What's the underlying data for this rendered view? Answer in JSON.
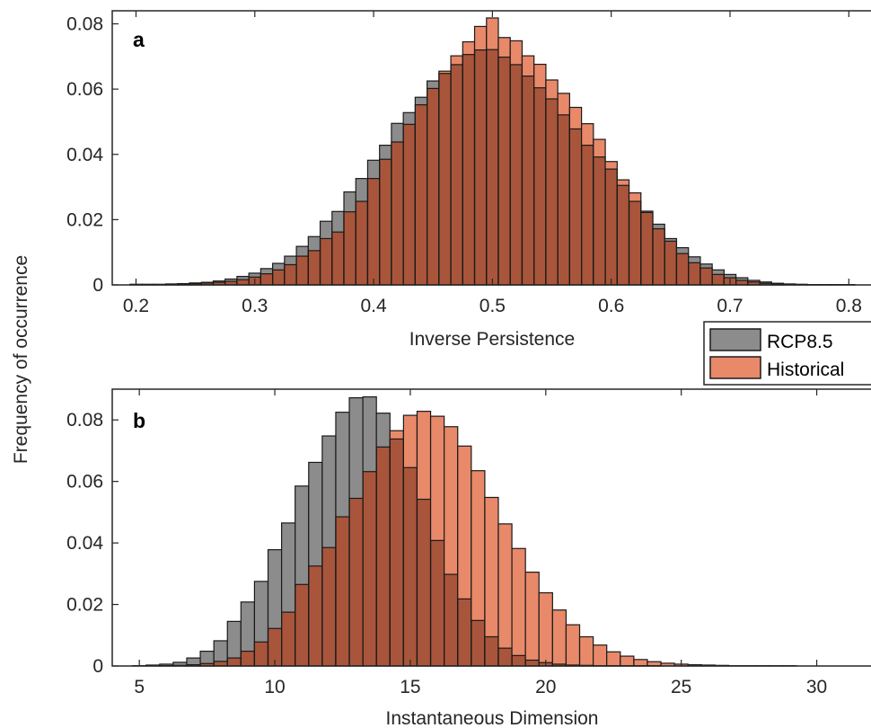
{
  "figure": {
    "ylabel": "Frequency of occurrence",
    "legend": {
      "placement": "right, between panels",
      "entries": [
        {
          "label": "RCP8.5",
          "color": "#8c8c8c"
        },
        {
          "label": "Historical",
          "color": "#e8896a"
        }
      ]
    },
    "colors": {
      "rcp_fill": "#8c8c8c",
      "hist_fill": "#e8896a",
      "overlap_fill": "#a9553b",
      "bar_edge": "#1a1a1a"
    }
  },
  "chart_data": [
    {
      "type": "bar",
      "panel_label": "a",
      "xlabel": "Inverse Persistence",
      "ylabel": "",
      "xlim": [
        0.18,
        0.83
      ],
      "ylim": [
        0,
        0.084
      ],
      "xticks": [
        "0.2",
        "0.3",
        "0.4",
        "0.5",
        "0.6",
        "0.7",
        "0.8"
      ],
      "yticks": [
        "0",
        "0.02",
        "0.04",
        "0.06",
        "0.08"
      ],
      "bin_width": 0.01,
      "x": [
        0.2,
        0.21,
        0.22,
        0.23,
        0.24,
        0.25,
        0.26,
        0.27,
        0.28,
        0.29,
        0.3,
        0.31,
        0.32,
        0.33,
        0.34,
        0.35,
        0.36,
        0.37,
        0.38,
        0.39,
        0.4,
        0.41,
        0.42,
        0.43,
        0.44,
        0.45,
        0.46,
        0.47,
        0.48,
        0.49,
        0.5,
        0.51,
        0.52,
        0.53,
        0.54,
        0.55,
        0.56,
        0.57,
        0.58,
        0.59,
        0.6,
        0.61,
        0.62,
        0.63,
        0.64,
        0.65,
        0.66,
        0.67,
        0.68,
        0.69,
        0.7,
        0.71,
        0.72,
        0.73,
        0.74,
        0.75,
        0.76,
        0.77,
        0.78,
        0.79,
        0.8
      ],
      "series": [
        {
          "name": "RCP8.5",
          "values": [
            0.0002,
            0.0002,
            0.0002,
            0.0003,
            0.0004,
            0.0006,
            0.0008,
            0.0012,
            0.0018,
            0.0026,
            0.0036,
            0.005,
            0.0066,
            0.0088,
            0.0118,
            0.0148,
            0.0195,
            0.0225,
            0.0285,
            0.0326,
            0.0382,
            0.0428,
            0.0495,
            0.0528,
            0.0575,
            0.0625,
            0.0648,
            0.0675,
            0.0706,
            0.072,
            0.0721,
            0.0698,
            0.0675,
            0.064,
            0.0604,
            0.057,
            0.0521,
            0.0478,
            0.0428,
            0.0392,
            0.0355,
            0.0305,
            0.0256,
            0.0226,
            0.0186,
            0.0142,
            0.0114,
            0.0086,
            0.0064,
            0.0046,
            0.0032,
            0.0022,
            0.0014,
            0.0009,
            0.0005,
            0.0003,
            0.0002,
            0.0001,
            0.0001,
            0.0001,
            0.0001
          ]
        },
        {
          "name": "Historical",
          "values": [
            0.0001,
            0.0001,
            0.0001,
            0.0002,
            0.0003,
            0.0004,
            0.0006,
            0.0008,
            0.0011,
            0.0016,
            0.0024,
            0.0034,
            0.0046,
            0.0062,
            0.0088,
            0.0105,
            0.0142,
            0.0162,
            0.0224,
            0.0256,
            0.0326,
            0.0385,
            0.0438,
            0.0492,
            0.0552,
            0.0602,
            0.0655,
            0.0702,
            0.0745,
            0.0792,
            0.0818,
            0.0758,
            0.0748,
            0.0702,
            0.0676,
            0.0628,
            0.0587,
            0.0544,
            0.0494,
            0.0446,
            0.0378,
            0.0322,
            0.0282,
            0.0222,
            0.0172,
            0.0134,
            0.0096,
            0.0068,
            0.0052,
            0.0032,
            0.0022,
            0.0014,
            0.0009,
            0.0005,
            0.0003,
            0.0002,
            0.0001,
            0.0001,
            0.0001,
            0.0001,
            0.0001
          ]
        }
      ],
      "legend": "none",
      "grid": false
    },
    {
      "type": "bar",
      "panel_label": "b",
      "xlabel": "Instantaneous Dimension",
      "ylabel": "",
      "xlim": [
        4,
        32.5
      ],
      "ylim": [
        0,
        0.09
      ],
      "xticks": [
        "5",
        "10",
        "15",
        "20",
        "25",
        "30"
      ],
      "yticks": [
        "0",
        "0.02",
        "0.04",
        "0.06",
        "0.08"
      ],
      "bin_width": 0.5,
      "x": [
        5,
        5.5,
        6,
        6.5,
        7,
        7.5,
        8,
        8.5,
        9,
        9.5,
        10,
        10.5,
        11,
        11.5,
        12,
        12.5,
        13,
        13.5,
        14,
        14.5,
        15,
        15.5,
        16,
        16.5,
        17,
        17.5,
        18,
        18.5,
        19,
        19.5,
        20,
        20.5,
        21,
        21.5,
        22,
        22.5,
        23,
        23.5,
        24,
        24.5,
        25,
        25.5,
        26,
        26.5,
        27,
        27.5,
        28,
        28.5,
        29,
        29.5,
        30,
        30.5,
        31
      ],
      "series": [
        {
          "name": "RCP8.5",
          "values": [
            0.0001,
            0.0003,
            0.0006,
            0.0012,
            0.0026,
            0.0048,
            0.0082,
            0.0145,
            0.0208,
            0.0275,
            0.0378,
            0.0465,
            0.0585,
            0.0662,
            0.0748,
            0.0825,
            0.0872,
            0.0875,
            0.0822,
            0.0738,
            0.0645,
            0.0542,
            0.0408,
            0.0298,
            0.0218,
            0.0148,
            0.0095,
            0.0058,
            0.0034,
            0.0019,
            0.0011,
            0.0006,
            0.0003,
            0.0002,
            0.0001,
            0.0001,
            0.0001,
            0.0001,
            0.0001,
            0,
            0,
            0,
            0,
            0,
            0,
            0,
            0,
            0,
            0,
            0,
            0,
            0,
            0
          ]
        },
        {
          "name": "Historical",
          "values": [
            0,
            0,
            0.0001,
            0.0002,
            0.0004,
            0.0008,
            0.0015,
            0.0026,
            0.0048,
            0.0078,
            0.0122,
            0.0175,
            0.0265,
            0.0325,
            0.0385,
            0.0485,
            0.0545,
            0.0632,
            0.0712,
            0.0765,
            0.0815,
            0.0828,
            0.0812,
            0.0778,
            0.0715,
            0.0635,
            0.0548,
            0.0462,
            0.0382,
            0.0305,
            0.0238,
            0.0182,
            0.0134,
            0.0095,
            0.0068,
            0.0046,
            0.0032,
            0.0021,
            0.0014,
            0.0009,
            0.0006,
            0.0004,
            0.0003,
            0.0002,
            0.0001,
            0.0001,
            0.0001,
            0.0001,
            0.0001,
            0,
            0,
            0,
            0
          ]
        }
      ],
      "legend": "none",
      "grid": false
    }
  ]
}
